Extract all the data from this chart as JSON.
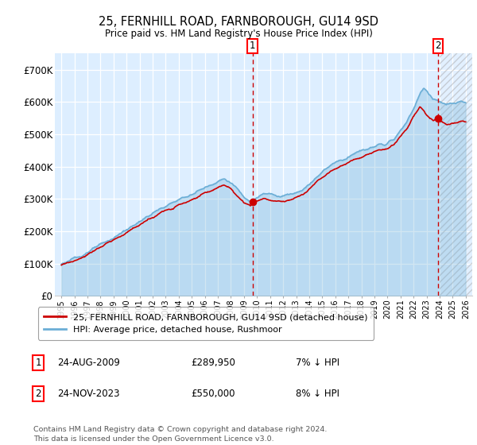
{
  "title": "25, FERNHILL ROAD, FARNBOROUGH, GU14 9SD",
  "subtitle": "Price paid vs. HM Land Registry's House Price Index (HPI)",
  "ylim": [
    0,
    750000
  ],
  "yticks": [
    0,
    100000,
    200000,
    300000,
    400000,
    500000,
    600000,
    700000
  ],
  "ytick_labels": [
    "£0",
    "£100K",
    "£200K",
    "£300K",
    "£400K",
    "£500K",
    "£600K",
    "£700K"
  ],
  "hpi_color": "#6baed6",
  "price_color": "#cc0000",
  "marker1_x": 2009.65,
  "marker1_y": 289950,
  "marker2_x": 2023.9,
  "marker2_y": 550000,
  "legend_line1": "25, FERNHILL ROAD, FARNBOROUGH, GU14 9SD (detached house)",
  "legend_line2": "HPI: Average price, detached house, Rushmoor",
  "marker1_label": "1",
  "marker1_date": "24-AUG-2009",
  "marker1_price": "£289,950",
  "marker1_hpi": "7% ↓ HPI",
  "marker2_label": "2",
  "marker2_date": "24-NOV-2023",
  "marker2_price": "£550,000",
  "marker2_hpi": "8% ↓ HPI",
  "footnote": "Contains HM Land Registry data © Crown copyright and database right 2024.\nThis data is licensed under the Open Government Licence v3.0.",
  "bg_color": "#ddeeff",
  "hatch_color": "#aac8e8",
  "xlim_left": 1994.5,
  "xlim_right": 2026.5,
  "hatch_start": 2024.0
}
